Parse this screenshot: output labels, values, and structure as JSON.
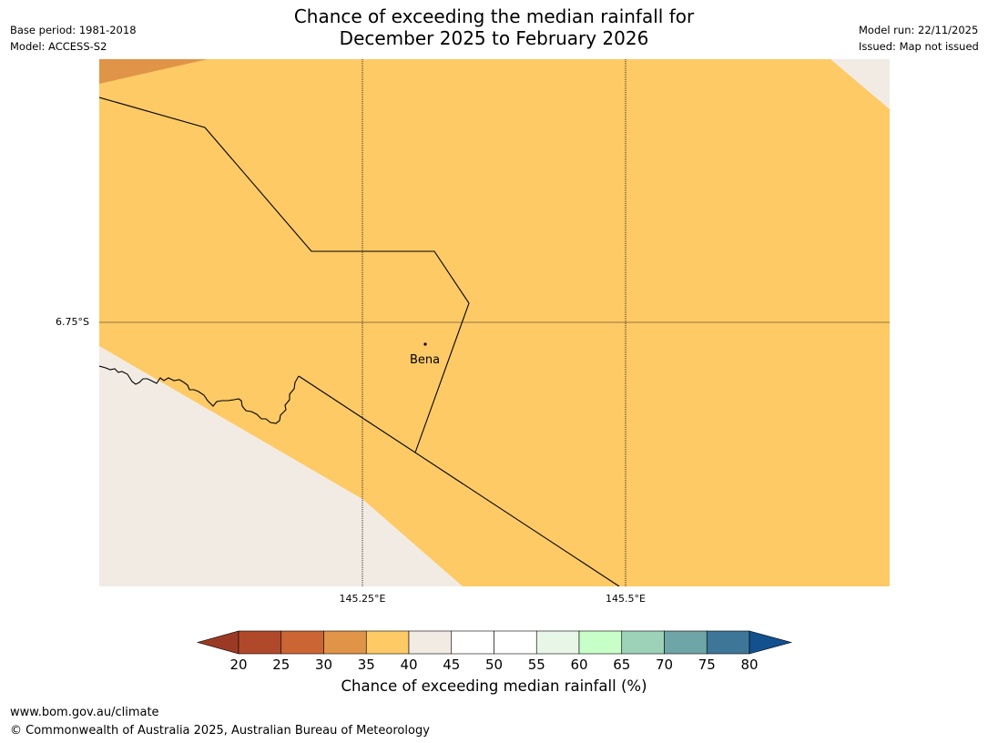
{
  "title_line1": "Chance of exceeding the median rainfall for",
  "title_line2": "December 2025 to February 2026",
  "meta_left": {
    "base_period": "Base period: 1981-2018",
    "model": "Model: ACCESS-S2"
  },
  "meta_right": {
    "model_run": "Model run: 22/11/2025",
    "issued": "Issued: Map not issued"
  },
  "axes": {
    "lon_ticks": [
      "145.25°E",
      "145.5°E"
    ],
    "lat_ticks": [
      "6.75°S"
    ]
  },
  "place": {
    "name": "Bena"
  },
  "colorbar": {
    "tick_labels": [
      "20",
      "25",
      "30",
      "35",
      "40",
      "45",
      "50",
      "55",
      "60",
      "65",
      "70",
      "75",
      "80"
    ],
    "title": "Chance of exceeding median rainfall (%)",
    "under_color": "#9b3a24",
    "over_color": "#12508e",
    "colors": [
      "#b0492a",
      "#cc6534",
      "#e09448",
      "#fdca66",
      "#f2ebe4",
      "#ffffff",
      "#ffffff",
      "#e8f6e7",
      "#c8fec8",
      "#9dd2b8",
      "#6ea5a6",
      "#3e7698"
    ]
  },
  "map_colors": {
    "band_35_40": "#fdca66",
    "band_40_45": "#f2ebe4",
    "band_30_35": "#e09448"
  },
  "footer": {
    "url": "www.bom.gov.au/climate",
    "copyright": "© Commonwealth of Australia 2025, Australian Bureau of Meteorology"
  }
}
